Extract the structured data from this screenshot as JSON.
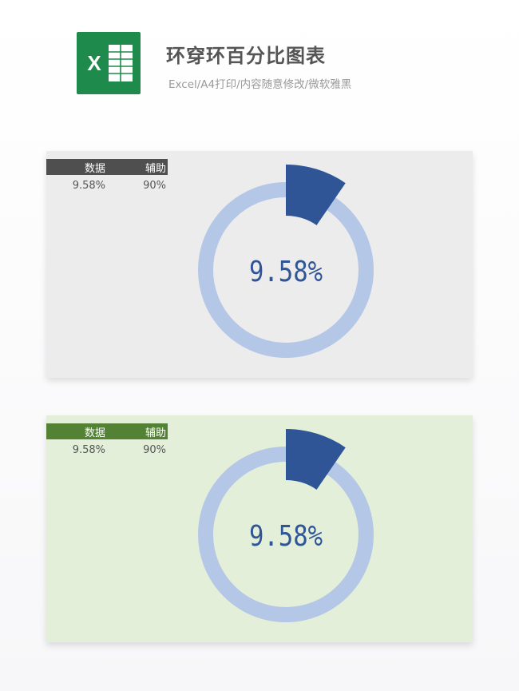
{
  "header": {
    "title": "环穿环百分比图表",
    "subtitle": "Excel/A4打印/内容随意修改/微软雅黑",
    "logo_letter": "X"
  },
  "colors": {
    "ring": "#b4c7e7",
    "highlight": "#2f5597",
    "label": "#2f5597"
  },
  "chart_data": [
    {
      "type": "pie",
      "variant": "donut-with-raised-segment",
      "series": [
        {
          "values": [
            0.0958,
            0.9042
          ]
        }
      ],
      "center_label": "9.58%",
      "table": {
        "headers": [
          "数据",
          "辅助"
        ],
        "row": [
          "9.58%",
          "90%"
        ]
      },
      "background": "#ececed"
    },
    {
      "type": "pie",
      "variant": "donut-with-raised-segment",
      "series": [
        {
          "values": [
            0.0958,
            0.9042
          ]
        }
      ],
      "center_label": "9.58%",
      "table": {
        "headers": [
          "数据",
          "辅助"
        ],
        "row": [
          "9.58%",
          "90%"
        ]
      },
      "background": "#e3efd9"
    }
  ]
}
